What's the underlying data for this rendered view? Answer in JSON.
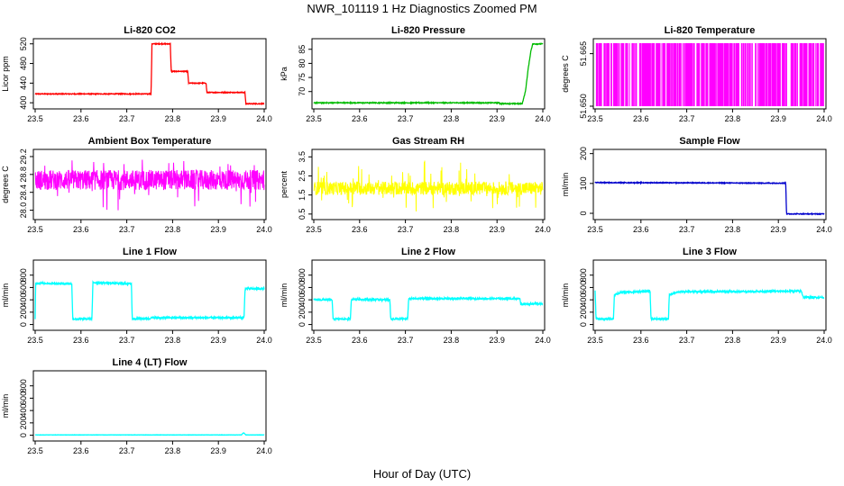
{
  "figure": {
    "title": "NWR_101119  1 Hz Diagnostics Zoomed PM",
    "xlabel": "Hour of Day (UTC)"
  },
  "chart_data": [
    {
      "type": "line",
      "title": "Li-820 CO2",
      "ylabel": "Licor ppm",
      "color": "#ff0000",
      "xlim": [
        23.5,
        24.0
      ],
      "xticks": [
        "23.5",
        "23.6",
        "23.7",
        "23.8",
        "23.9",
        "24.0"
      ],
      "ylim": [
        393,
        525
      ],
      "yticks": [
        "400",
        "440",
        "480",
        "520"
      ],
      "noise": 0.8,
      "series": [
        {
          "points": [
            [
              23.5,
              418
            ],
            [
              23.753,
              418
            ],
            [
              23.755,
              520
            ],
            [
              23.795,
              520
            ],
            [
              23.797,
              464
            ],
            [
              23.833,
              464
            ],
            [
              23.835,
              440
            ],
            [
              23.873,
              440
            ],
            [
              23.875,
              421
            ],
            [
              23.958,
              421
            ],
            [
              23.96,
              398
            ],
            [
              23.99,
              398
            ],
            [
              23.99,
              398
            ]
          ]
        }
      ]
    },
    {
      "type": "line",
      "title": "Li-820 Pressure",
      "ylabel": "kPa",
      "color": "#00bb00",
      "xlim": [
        23.5,
        24.0
      ],
      "xticks": [
        "23.5",
        "23.6",
        "23.7",
        "23.8",
        "23.9",
        "24.0"
      ],
      "ylim": [
        64.8,
        87.8
      ],
      "yticks": [
        "70",
        "75",
        "80",
        "85"
      ],
      "noise": 0.15,
      "series": [
        {
          "points": [
            [
              23.5,
              66.0
            ],
            [
              23.905,
              66.0
            ],
            [
              23.906,
              65.7
            ],
            [
              23.955,
              65.7
            ],
            [
              23.962,
              70
            ],
            [
              23.968,
              78
            ],
            [
              23.974,
              84.5
            ],
            [
              23.978,
              86.9
            ],
            [
              24.0,
              86.9
            ]
          ]
        }
      ]
    },
    {
      "type": "bars",
      "title": "Li-820 Temperature",
      "ylabel": "degrees C",
      "color": "#ff00ff",
      "xlim": [
        23.5,
        24.0
      ],
      "xticks": [
        "23.5",
        "23.6",
        "23.7",
        "23.8",
        "23.9",
        "24.0"
      ],
      "ylim": [
        51.65,
        51.6685
      ],
      "yticks": [
        "51.650",
        "51.665"
      ],
      "baseline": 51.65,
      "top": 51.668,
      "density": 0.72
    },
    {
      "type": "line",
      "title": "Ambient Box Temperature",
      "ylabel": "degrees C",
      "color": "#ff00ff",
      "xlim": [
        23.5,
        24.0
      ],
      "xticks": [
        "23.5",
        "23.6",
        "23.7",
        "23.8",
        "23.9",
        "24.0"
      ],
      "ylim": [
        27.85,
        29.3
      ],
      "yticks": [
        "28.0",
        "28.4",
        "28.8",
        "29.2"
      ],
      "noise_band": [
        28.45,
        28.9
      ],
      "spikes_low": 27.95,
      "spikes_high": 29.15,
      "series": [
        {
          "points": [
            [
              23.5,
              28.68
            ],
            [
              24.0,
              28.68
            ]
          ]
        }
      ]
    },
    {
      "type": "line",
      "title": "Gas Stream RH",
      "ylabel": "percent",
      "color": "#ffff00",
      "xlim": [
        23.5,
        24.0
      ],
      "xticks": [
        "23.5",
        "23.6",
        "23.7",
        "23.8",
        "23.9",
        "24.0"
      ],
      "ylim": [
        0.35,
        3.75
      ],
      "yticks": [
        "0.5",
        "1.5",
        "2.5",
        "3.5"
      ],
      "noise_band": [
        1.5,
        2.2
      ],
      "spikes_low": 0.6,
      "spikes_high": 3.3,
      "series": [
        {
          "points": [
            [
              23.5,
              1.85
            ],
            [
              24.0,
              1.85
            ]
          ]
        }
      ]
    },
    {
      "type": "line",
      "title": "Sample Flow",
      "ylabel": "ml/min",
      "color": "#0000cc",
      "xlim": [
        23.5,
        24.0
      ],
      "xticks": [
        "23.5",
        "23.6",
        "23.7",
        "23.8",
        "23.9",
        "24.0"
      ],
      "ylim": [
        -12,
        205
      ],
      "yticks": [
        "0",
        "100",
        "200"
      ],
      "noise": 1.2,
      "series": [
        {
          "points": [
            [
              23.5,
              103
            ],
            [
              23.916,
              101
            ],
            [
              23.918,
              -2
            ],
            [
              24.0,
              -2
            ]
          ]
        }
      ]
    },
    {
      "type": "line",
      "title": "Line 1 Flow",
      "ylabel": "ml/min",
      "color": "#00ffff",
      "xlim": [
        23.5,
        24.0
      ],
      "xticks": [
        "23.5",
        "23.6",
        "23.7",
        "23.8",
        "23.9",
        "24.0"
      ],
      "ylim": [
        -50,
        1000
      ],
      "yticks": [
        "0",
        "200",
        "400",
        "600",
        "800"
      ],
      "noise": 14,
      "series": [
        {
          "points": [
            [
              23.5,
              100
            ],
            [
              23.501,
              670
            ],
            [
              23.58,
              660
            ],
            [
              23.582,
              90
            ],
            [
              23.624,
              90
            ],
            [
              23.626,
              680
            ],
            [
              23.71,
              660
            ],
            [
              23.712,
              95
            ],
            [
              23.75,
              95
            ],
            [
              23.752,
              110
            ],
            [
              23.956,
              110
            ],
            [
              23.958,
              560
            ],
            [
              23.96,
              580
            ],
            [
              24.0,
              580
            ]
          ]
        }
      ]
    },
    {
      "type": "line",
      "title": "Line 2 Flow",
      "ylabel": "ml/min",
      "color": "#00ffff",
      "xlim": [
        23.5,
        24.0
      ],
      "xticks": [
        "23.5",
        "23.6",
        "23.7",
        "23.8",
        "23.9",
        "24.0"
      ],
      "ylim": [
        -50,
        1000
      ],
      "yticks": [
        "0",
        "200",
        "400",
        "600",
        "800"
      ],
      "noise": 14,
      "series": [
        {
          "points": [
            [
              23.5,
              400
            ],
            [
              23.54,
              400
            ],
            [
              23.542,
              90
            ],
            [
              23.58,
              90
            ],
            [
              23.582,
              410
            ],
            [
              23.666,
              400
            ],
            [
              23.668,
              90
            ],
            [
              23.705,
              90
            ],
            [
              23.707,
              420
            ],
            [
              23.95,
              420
            ],
            [
              23.952,
              330
            ],
            [
              24.0,
              340
            ]
          ]
        }
      ]
    },
    {
      "type": "line",
      "title": "Line 3 Flow",
      "ylabel": "ml/min",
      "color": "#00ffff",
      "xlim": [
        23.5,
        24.0
      ],
      "xticks": [
        "23.5",
        "23.6",
        "23.7",
        "23.8",
        "23.9",
        "24.0"
      ],
      "ylim": [
        -50,
        1000
      ],
      "yticks": [
        "0",
        "200",
        "400",
        "600",
        "800"
      ],
      "noise": 14,
      "series": [
        {
          "points": [
            [
              23.5,
              560
            ],
            [
              23.502,
              90
            ],
            [
              23.54,
              90
            ],
            [
              23.542,
              480
            ],
            [
              23.555,
              520
            ],
            [
              23.62,
              540
            ],
            [
              23.622,
              90
            ],
            [
              23.66,
              90
            ],
            [
              23.662,
              480
            ],
            [
              23.68,
              530
            ],
            [
              23.95,
              540
            ],
            [
              23.955,
              440
            ],
            [
              24.0,
              440
            ]
          ]
        }
      ]
    },
    {
      "type": "line",
      "title": "Line 4 (LT) Flow",
      "ylabel": "ml/min",
      "color": "#00ffff",
      "xlim": [
        23.5,
        24.0
      ],
      "xticks": [
        "23.5",
        "23.6",
        "23.7",
        "23.8",
        "23.9",
        "24.0"
      ],
      "ylim": [
        -50,
        1000
      ],
      "yticks": [
        "0",
        "200",
        "400",
        "600",
        "800"
      ],
      "noise": 2,
      "series": [
        {
          "points": [
            [
              23.5,
              5
            ],
            [
              23.95,
              5
            ],
            [
              23.955,
              40
            ],
            [
              23.96,
              5
            ],
            [
              24.0,
              5
            ]
          ]
        }
      ]
    }
  ]
}
